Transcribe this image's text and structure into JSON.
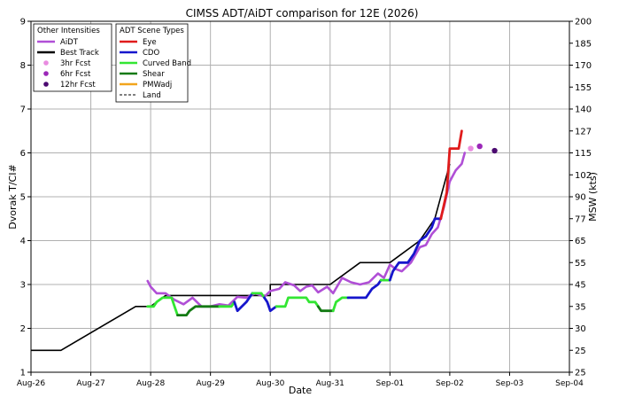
{
  "chart_data": {
    "type": "line",
    "title": "CIMSS ADT/AiDT comparison for 12E (2026)",
    "xlabel": "Date",
    "ylabel": "Dvorak T/CI#",
    "ylabel_right": "MSW (kts)",
    "x_ticks": [
      "Aug-26",
      "Aug-27",
      "Aug-28",
      "Aug-29",
      "Aug-30",
      "Aug-31",
      "Sep-01",
      "Sep-02",
      "Sep-03",
      "Sep-04"
    ],
    "x_unit": "days since Aug-26 00Z",
    "xlim": [
      0,
      9
    ],
    "ylim": [
      1,
      9
    ],
    "y_ticks": [
      1,
      2,
      3,
      4,
      5,
      6,
      7,
      8,
      9
    ],
    "y2_ticks": [
      {
        "t": 1.0,
        "label": "25"
      },
      {
        "t": 1.5,
        "label": "25"
      },
      {
        "t": 2.0,
        "label": "30"
      },
      {
        "t": 2.5,
        "label": "35"
      },
      {
        "t": 3.0,
        "label": "45"
      },
      {
        "t": 3.5,
        "label": "55"
      },
      {
        "t": 4.0,
        "label": "65"
      },
      {
        "t": 4.5,
        "label": "77"
      },
      {
        "t": 5.0,
        "label": "90"
      },
      {
        "t": 5.5,
        "label": "102"
      },
      {
        "t": 6.0,
        "label": "115"
      },
      {
        "t": 6.5,
        "label": "127"
      },
      {
        "t": 7.0,
        "label": "140"
      },
      {
        "t": 7.5,
        "label": "155"
      },
      {
        "t": 8.0,
        "label": "170"
      },
      {
        "t": 8.5,
        "label": "185"
      },
      {
        "t": 9.0,
        "label": "200"
      }
    ],
    "grid": true,
    "legends": [
      {
        "title": "Other Intensities",
        "placement": "top-left",
        "entries": [
          {
            "label": "AiDT",
            "kind": "line",
            "color": "#b04fd6"
          },
          {
            "label": "Best Track",
            "kind": "line",
            "color": "#000000"
          },
          {
            "label": "3hr Fcst",
            "kind": "dot",
            "color": "#e98ce0"
          },
          {
            "label": "6hr Fcst",
            "kind": "dot",
            "color": "#9b27b8"
          },
          {
            "label": "12hr Fcst",
            "kind": "dot",
            "color": "#4b0a70"
          }
        ]
      },
      {
        "title": "ADT Scene Types",
        "placement": "top-left",
        "entries": [
          {
            "label": "Eye",
            "kind": "line",
            "color": "#e01b1b"
          },
          {
            "label": "CDO",
            "kind": "line",
            "color": "#1616cc"
          },
          {
            "label": "Curved Band",
            "kind": "line",
            "color": "#33e633"
          },
          {
            "label": "Shear",
            "kind": "line",
            "color": "#137a13"
          },
          {
            "label": "PMWadj",
            "kind": "line",
            "color": "#f2a51c"
          },
          {
            "label": "Land",
            "kind": "dashed",
            "color": "#000000"
          }
        ]
      }
    ],
    "series": [
      {
        "name": "Best Track",
        "color": "#000000",
        "width": 1.6,
        "points": [
          [
            0,
            1.5
          ],
          [
            0.5,
            1.5
          ],
          [
            1.75,
            2.5
          ],
          [
            2.0,
            2.5
          ],
          [
            2.25,
            2.75
          ],
          [
            4.0,
            2.75
          ],
          [
            4.0,
            3.0
          ],
          [
            5.0,
            3.0
          ],
          [
            5.5,
            3.5
          ],
          [
            6.0,
            3.5
          ],
          [
            6.5,
            4.0
          ],
          [
            6.75,
            4.5
          ],
          [
            7.0,
            5.75
          ]
        ]
      },
      {
        "name": "AiDT",
        "color": "#b04fd6",
        "width": 2.6,
        "points": [
          [
            1.95,
            3.08
          ],
          [
            2.0,
            2.95
          ],
          [
            2.1,
            2.8
          ],
          [
            2.25,
            2.8
          ],
          [
            2.4,
            2.65
          ],
          [
            2.55,
            2.55
          ],
          [
            2.7,
            2.7
          ],
          [
            2.85,
            2.5
          ],
          [
            3.0,
            2.5
          ],
          [
            3.15,
            2.55
          ],
          [
            3.3,
            2.52
          ],
          [
            3.45,
            2.72
          ],
          [
            3.6,
            2.7
          ],
          [
            3.75,
            2.8
          ],
          [
            3.9,
            2.72
          ],
          [
            4.0,
            2.85
          ],
          [
            4.15,
            2.9
          ],
          [
            4.25,
            3.05
          ],
          [
            4.4,
            2.98
          ],
          [
            4.5,
            2.85
          ],
          [
            4.6,
            2.95
          ],
          [
            4.7,
            2.98
          ],
          [
            4.8,
            2.82
          ],
          [
            4.95,
            2.95
          ],
          [
            5.05,
            2.8
          ],
          [
            5.2,
            3.15
          ],
          [
            5.35,
            3.05
          ],
          [
            5.5,
            3.0
          ],
          [
            5.65,
            3.05
          ],
          [
            5.8,
            3.25
          ],
          [
            5.9,
            3.15
          ],
          [
            6.0,
            3.45
          ],
          [
            6.1,
            3.35
          ],
          [
            6.2,
            3.3
          ],
          [
            6.35,
            3.5
          ],
          [
            6.5,
            3.85
          ],
          [
            6.6,
            3.9
          ],
          [
            6.7,
            4.15
          ],
          [
            6.8,
            4.3
          ],
          [
            6.9,
            4.75
          ],
          [
            7.0,
            5.35
          ],
          [
            7.1,
            5.6
          ],
          [
            7.2,
            5.75
          ],
          [
            7.25,
            6.0
          ]
        ]
      }
    ],
    "scene_segments": [
      {
        "type": "Curved Band",
        "points": [
          [
            1.95,
            2.5
          ],
          [
            2.05,
            2.5
          ],
          [
            2.1,
            2.6
          ],
          [
            2.2,
            2.7
          ],
          [
            2.35,
            2.7
          ],
          [
            2.4,
            2.5
          ],
          [
            2.45,
            2.3
          ]
        ]
      },
      {
        "type": "Shear",
        "points": [
          [
            2.45,
            2.3
          ],
          [
            2.6,
            2.3
          ],
          [
            2.65,
            2.4
          ],
          [
            2.75,
            2.5
          ],
          [
            3.0,
            2.5
          ],
          [
            3.15,
            2.5
          ]
        ]
      },
      {
        "type": "Curved Band",
        "points": [
          [
            3.15,
            2.5
          ],
          [
            3.35,
            2.5
          ],
          [
            3.4,
            2.6
          ]
        ]
      },
      {
        "type": "CDO",
        "points": [
          [
            3.4,
            2.6
          ],
          [
            3.45,
            2.4
          ],
          [
            3.6,
            2.6
          ],
          [
            3.7,
            2.8
          ]
        ]
      },
      {
        "type": "Curved Band",
        "points": [
          [
            3.7,
            2.8
          ],
          [
            3.85,
            2.8
          ],
          [
            3.9,
            2.7
          ]
        ]
      },
      {
        "type": "CDO",
        "points": [
          [
            3.9,
            2.7
          ],
          [
            3.95,
            2.6
          ],
          [
            4.0,
            2.4
          ],
          [
            4.1,
            2.5
          ]
        ]
      },
      {
        "type": "Curved Band",
        "points": [
          [
            4.1,
            2.5
          ],
          [
            4.25,
            2.5
          ],
          [
            4.3,
            2.7
          ],
          [
            4.6,
            2.7
          ],
          [
            4.65,
            2.6
          ],
          [
            4.75,
            2.6
          ],
          [
            4.8,
            2.5
          ]
        ]
      },
      {
        "type": "Shear",
        "points": [
          [
            4.8,
            2.5
          ],
          [
            4.85,
            2.4
          ],
          [
            5.05,
            2.4
          ]
        ]
      },
      {
        "type": "Curved Band",
        "points": [
          [
            5.05,
            2.4
          ],
          [
            5.1,
            2.6
          ],
          [
            5.2,
            2.7
          ],
          [
            5.3,
            2.7
          ]
        ]
      },
      {
        "type": "CDO",
        "points": [
          [
            5.3,
            2.7
          ],
          [
            5.6,
            2.7
          ],
          [
            5.7,
            2.9
          ],
          [
            5.8,
            3.0
          ],
          [
            5.85,
            3.1
          ]
        ]
      },
      {
        "type": "Curved Band",
        "points": [
          [
            5.85,
            3.1
          ],
          [
            6.0,
            3.1
          ]
        ]
      },
      {
        "type": "CDO",
        "points": [
          [
            6.0,
            3.1
          ],
          [
            6.05,
            3.3
          ],
          [
            6.15,
            3.5
          ],
          [
            6.3,
            3.5
          ],
          [
            6.4,
            3.7
          ],
          [
            6.5,
            4.0
          ],
          [
            6.6,
            4.1
          ],
          [
            6.7,
            4.3
          ],
          [
            6.75,
            4.5
          ],
          [
            6.85,
            4.5
          ]
        ]
      },
      {
        "type": "Eye",
        "points": [
          [
            6.85,
            4.5
          ],
          [
            6.95,
            5.1
          ],
          [
            7.0,
            6.1
          ],
          [
            7.15,
            6.1
          ],
          [
            7.2,
            6.5
          ]
        ]
      }
    ],
    "forecasts": [
      {
        "name": "3hr Fcst",
        "x": 7.35,
        "y": 6.1,
        "color": "#e98ce0"
      },
      {
        "name": "6hr Fcst",
        "x": 7.5,
        "y": 6.15,
        "color": "#9b27b8"
      },
      {
        "name": "12hr Fcst",
        "x": 7.75,
        "y": 6.05,
        "color": "#4b0a70"
      }
    ]
  }
}
